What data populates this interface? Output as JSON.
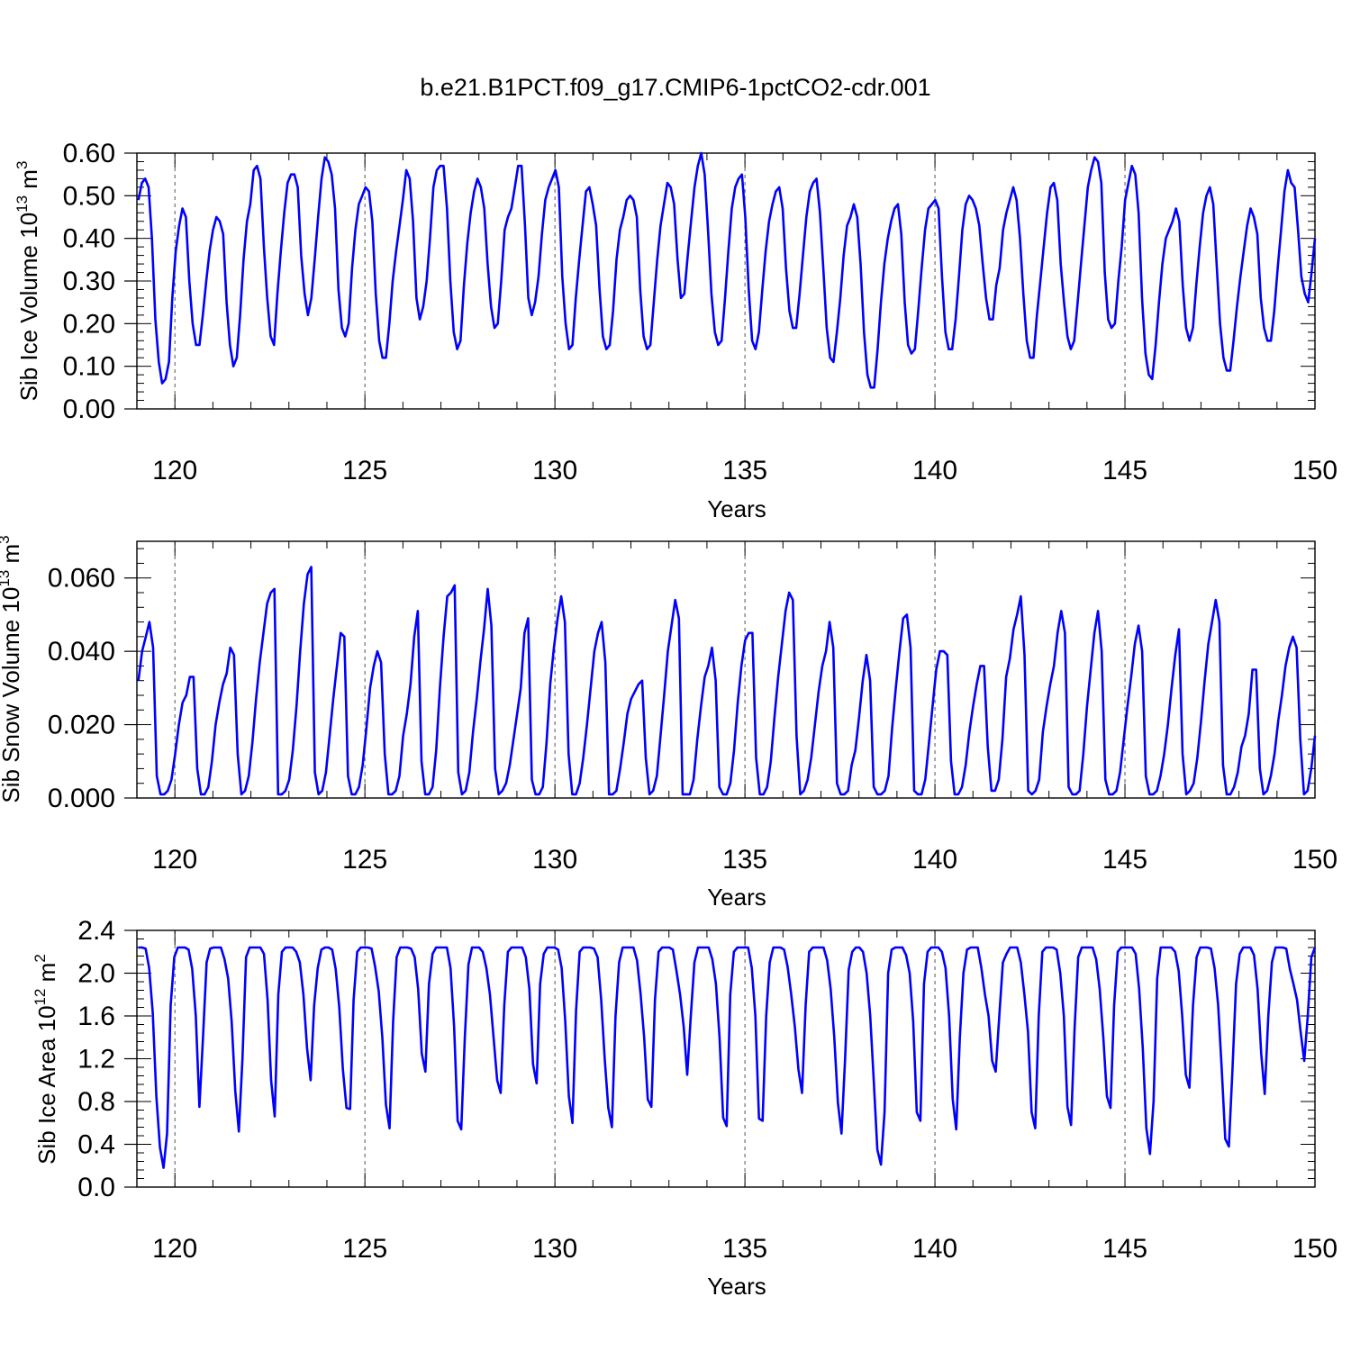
{
  "title": "b.e21.B1PCT.f09_g17.CMIP6-1pctCO2-cdr.001",
  "colors": {
    "line": "#0000ff",
    "axis": "#000000",
    "grid": "#555555"
  },
  "chart_data": [
    {
      "type": "line",
      "ylabel": "Sib Ice Volume 10",
      "ylabel_exp": "13",
      "ylabel_unit": " m",
      "ylabel_unit_exp": "3",
      "xlabel": "Years",
      "xlim": [
        119,
        150
      ],
      "ylim": [
        0,
        0.6
      ],
      "yticks": [
        0,
        0.1,
        0.2,
        0.3,
        0.4,
        0.5,
        0.6
      ],
      "ytick_labels": [
        "0.00",
        "0.10",
        "0.20",
        "0.30",
        "0.40",
        "0.50",
        "0.60"
      ],
      "xticks": [
        120,
        125,
        130,
        135,
        140,
        145,
        150
      ],
      "xtick_labels": [
        "120",
        "125",
        "130",
        "135",
        "140",
        "145",
        "150"
      ],
      "grid_x": true,
      "start_year": 119.04,
      "values": [
        0.49,
        0.53,
        0.54,
        0.52,
        0.4,
        0.21,
        0.11,
        0.06,
        0.07,
        0.11,
        0.26,
        0.37,
        0.43,
        0.47,
        0.45,
        0.3,
        0.2,
        0.15,
        0.15,
        0.22,
        0.3,
        0.37,
        0.42,
        0.45,
        0.44,
        0.41,
        0.25,
        0.15,
        0.1,
        0.12,
        0.22,
        0.35,
        0.44,
        0.48,
        0.56,
        0.57,
        0.54,
        0.38,
        0.26,
        0.17,
        0.15,
        0.27,
        0.37,
        0.46,
        0.53,
        0.55,
        0.55,
        0.52,
        0.36,
        0.27,
        0.22,
        0.26,
        0.35,
        0.45,
        0.54,
        0.59,
        0.58,
        0.55,
        0.47,
        0.28,
        0.19,
        0.17,
        0.2,
        0.33,
        0.42,
        0.48,
        0.5,
        0.52,
        0.51,
        0.44,
        0.27,
        0.16,
        0.12,
        0.12,
        0.2,
        0.3,
        0.37,
        0.43,
        0.49,
        0.56,
        0.54,
        0.44,
        0.26,
        0.21,
        0.24,
        0.3,
        0.4,
        0.52,
        0.56,
        0.57,
        0.57,
        0.47,
        0.3,
        0.18,
        0.14,
        0.16,
        0.29,
        0.39,
        0.46,
        0.51,
        0.54,
        0.52,
        0.47,
        0.34,
        0.24,
        0.19,
        0.2,
        0.3,
        0.42,
        0.45,
        0.47,
        0.52,
        0.57,
        0.57,
        0.43,
        0.26,
        0.22,
        0.25,
        0.31,
        0.41,
        0.49,
        0.52,
        0.54,
        0.56,
        0.52,
        0.31,
        0.2,
        0.14,
        0.15,
        0.26,
        0.35,
        0.43,
        0.51,
        0.52,
        0.48,
        0.43,
        0.28,
        0.17,
        0.14,
        0.15,
        0.23,
        0.35,
        0.42,
        0.45,
        0.49,
        0.5,
        0.49,
        0.45,
        0.28,
        0.17,
        0.14,
        0.15,
        0.25,
        0.35,
        0.43,
        0.48,
        0.53,
        0.52,
        0.48,
        0.35,
        0.26,
        0.27,
        0.36,
        0.44,
        0.52,
        0.57,
        0.6,
        0.55,
        0.42,
        0.27,
        0.18,
        0.15,
        0.16,
        0.26,
        0.37,
        0.47,
        0.52,
        0.54,
        0.55,
        0.45,
        0.28,
        0.16,
        0.14,
        0.18,
        0.28,
        0.37,
        0.44,
        0.48,
        0.51,
        0.52,
        0.47,
        0.33,
        0.23,
        0.19,
        0.19,
        0.27,
        0.36,
        0.45,
        0.51,
        0.53,
        0.54,
        0.46,
        0.33,
        0.19,
        0.12,
        0.11,
        0.18,
        0.26,
        0.36,
        0.43,
        0.45,
        0.48,
        0.45,
        0.34,
        0.18,
        0.08,
        0.05,
        0.05,
        0.14,
        0.25,
        0.34,
        0.4,
        0.44,
        0.47,
        0.48,
        0.41,
        0.25,
        0.15,
        0.13,
        0.14,
        0.23,
        0.33,
        0.42,
        0.47,
        0.48,
        0.49,
        0.47,
        0.31,
        0.18,
        0.14,
        0.14,
        0.21,
        0.31,
        0.42,
        0.48,
        0.5,
        0.49,
        0.47,
        0.43,
        0.34,
        0.26,
        0.21,
        0.21,
        0.29,
        0.33,
        0.42,
        0.46,
        0.49,
        0.52,
        0.49,
        0.4,
        0.27,
        0.16,
        0.12,
        0.12,
        0.22,
        0.3,
        0.38,
        0.46,
        0.52,
        0.53,
        0.49,
        0.34,
        0.25,
        0.17,
        0.14,
        0.16,
        0.25,
        0.34,
        0.43,
        0.52,
        0.56,
        0.59,
        0.58,
        0.53,
        0.32,
        0.21,
        0.19,
        0.2,
        0.3,
        0.38,
        0.49,
        0.53,
        0.57,
        0.55,
        0.46,
        0.26,
        0.13,
        0.08,
        0.07,
        0.15,
        0.25,
        0.34,
        0.4,
        0.42,
        0.44,
        0.47,
        0.44,
        0.29,
        0.19,
        0.16,
        0.19,
        0.29,
        0.38,
        0.46,
        0.5,
        0.52,
        0.48,
        0.34,
        0.2,
        0.12,
        0.09,
        0.09,
        0.16,
        0.24,
        0.31,
        0.37,
        0.43,
        0.47,
        0.45,
        0.41,
        0.26,
        0.19,
        0.16,
        0.16,
        0.23,
        0.33,
        0.42,
        0.51,
        0.56,
        0.53,
        0.52,
        0.42,
        0.31,
        0.27,
        0.25,
        0.32,
        0.4
      ]
    },
    {
      "type": "line",
      "ylabel": "Sib Snow Volume 10",
      "ylabel_exp": "13",
      "ylabel_unit": " m",
      "ylabel_unit_exp": "3",
      "xlabel": "Years",
      "xlim": [
        119,
        150
      ],
      "ylim": [
        0,
        0.07
      ],
      "yticks": [
        0,
        0.02,
        0.04,
        0.06
      ],
      "ytick_labels": [
        "0.000",
        "0.020",
        "0.040",
        "0.060"
      ],
      "xticks": [
        120,
        125,
        130,
        135,
        140,
        145,
        150
      ],
      "xtick_labels": [
        "120",
        "125",
        "130",
        "135",
        "140",
        "145",
        "150"
      ],
      "grid_x": true,
      "start_year": 119.04,
      "values": [
        0.032,
        0.04,
        0.044,
        0.048,
        0.041,
        0.006,
        0.001,
        0.001,
        0.002,
        0.005,
        0.012,
        0.02,
        0.026,
        0.028,
        0.033,
        0.033,
        0.008,
        0.001,
        0.001,
        0.003,
        0.01,
        0.02,
        0.026,
        0.031,
        0.034,
        0.041,
        0.039,
        0.012,
        0.001,
        0.002,
        0.006,
        0.015,
        0.027,
        0.037,
        0.045,
        0.053,
        0.056,
        0.057,
        0.001,
        0.001,
        0.002,
        0.005,
        0.013,
        0.025,
        0.04,
        0.053,
        0.061,
        0.063,
        0.007,
        0.001,
        0.002,
        0.007,
        0.017,
        0.027,
        0.036,
        0.045,
        0.044,
        0.006,
        0.001,
        0.001,
        0.003,
        0.009,
        0.019,
        0.03,
        0.036,
        0.04,
        0.037,
        0.012,
        0.001,
        0.001,
        0.002,
        0.006,
        0.017,
        0.023,
        0.031,
        0.044,
        0.051,
        0.01,
        0.001,
        0.001,
        0.003,
        0.013,
        0.03,
        0.044,
        0.055,
        0.056,
        0.058,
        0.007,
        0.001,
        0.002,
        0.007,
        0.018,
        0.027,
        0.037,
        0.046,
        0.057,
        0.047,
        0.008,
        0.001,
        0.002,
        0.004,
        0.009,
        0.016,
        0.023,
        0.03,
        0.045,
        0.049,
        0.005,
        0.001,
        0.001,
        0.003,
        0.015,
        0.031,
        0.041,
        0.049,
        0.055,
        0.048,
        0.012,
        0.001,
        0.001,
        0.004,
        0.011,
        0.02,
        0.03,
        0.04,
        0.045,
        0.048,
        0.037,
        0.001,
        0.001,
        0.002,
        0.008,
        0.015,
        0.023,
        0.027,
        0.029,
        0.031,
        0.032,
        0.011,
        0.001,
        0.002,
        0.006,
        0.017,
        0.028,
        0.04,
        0.047,
        0.054,
        0.049,
        0.001,
        0.001,
        0.001,
        0.005,
        0.016,
        0.025,
        0.033,
        0.036,
        0.041,
        0.032,
        0.003,
        0.001,
        0.001,
        0.004,
        0.013,
        0.026,
        0.036,
        0.043,
        0.045,
        0.045,
        0.011,
        0.001,
        0.001,
        0.003,
        0.01,
        0.022,
        0.033,
        0.042,
        0.051,
        0.056,
        0.054,
        0.017,
        0.001,
        0.002,
        0.005,
        0.011,
        0.02,
        0.029,
        0.036,
        0.04,
        0.048,
        0.041,
        0.004,
        0.001,
        0.001,
        0.002,
        0.009,
        0.013,
        0.022,
        0.032,
        0.039,
        0.032,
        0.003,
        0.001,
        0.001,
        0.002,
        0.006,
        0.019,
        0.03,
        0.04,
        0.049,
        0.05,
        0.041,
        0.002,
        0.001,
        0.001,
        0.005,
        0.015,
        0.025,
        0.035,
        0.04,
        0.04,
        0.039,
        0.01,
        0.001,
        0.001,
        0.003,
        0.009,
        0.018,
        0.025,
        0.031,
        0.036,
        0.036,
        0.014,
        0.002,
        0.002,
        0.005,
        0.016,
        0.033,
        0.038,
        0.046,
        0.05,
        0.055,
        0.039,
        0.002,
        0.001,
        0.002,
        0.005,
        0.018,
        0.025,
        0.031,
        0.036,
        0.045,
        0.051,
        0.045,
        0.003,
        0.001,
        0.001,
        0.002,
        0.012,
        0.025,
        0.035,
        0.045,
        0.051,
        0.04,
        0.005,
        0.001,
        0.001,
        0.002,
        0.007,
        0.016,
        0.025,
        0.033,
        0.042,
        0.047,
        0.04,
        0.006,
        0.001,
        0.001,
        0.002,
        0.006,
        0.012,
        0.02,
        0.03,
        0.039,
        0.046,
        0.012,
        0.001,
        0.002,
        0.004,
        0.011,
        0.021,
        0.032,
        0.042,
        0.048,
        0.054,
        0.048,
        0.009,
        0.001,
        0.001,
        0.003,
        0.007,
        0.014,
        0.017,
        0.023,
        0.035,
        0.035,
        0.008,
        0.001,
        0.002,
        0.006,
        0.012,
        0.021,
        0.028,
        0.036,
        0.041,
        0.044,
        0.041,
        0.016,
        0.001,
        0.002,
        0.008,
        0.017
      ]
    },
    {
      "type": "line",
      "ylabel": "Sib Ice Area 10",
      "ylabel_exp": "12",
      "ylabel_unit": " m",
      "ylabel_unit_exp": "2",
      "xlabel": "Years",
      "xlim": [
        119,
        150
      ],
      "ylim": [
        0,
        2.4
      ],
      "yticks": [
        0,
        0.4,
        0.8,
        1.2,
        1.6,
        2.0,
        2.4
      ],
      "ytick_labels": [
        "0.0",
        "0.4",
        "0.8",
        "1.2",
        "1.6",
        "2.0",
        "2.4"
      ],
      "xticks": [
        120,
        125,
        130,
        135,
        140,
        145,
        150
      ],
      "xtick_labels": [
        "120",
        "125",
        "130",
        "135",
        "140",
        "145",
        "150"
      ],
      "grid_x": true,
      "start_year": 119.04,
      "values": [
        2.24,
        2.24,
        2.23,
        2.05,
        1.63,
        0.85,
        0.37,
        0.18,
        0.5,
        1.7,
        2.15,
        2.24,
        2.24,
        2.24,
        2.22,
        2.04,
        1.6,
        0.75,
        1.4,
        2.1,
        2.23,
        2.24,
        2.24,
        2.24,
        2.13,
        1.95,
        1.55,
        0.9,
        0.52,
        1.2,
        2.15,
        2.24,
        2.24,
        2.24,
        2.24,
        2.18,
        1.75,
        1.0,
        0.66,
        1.8,
        2.2,
        2.24,
        2.24,
        2.24,
        2.2,
        2.1,
        1.8,
        1.3,
        1.0,
        1.7,
        2.05,
        2.22,
        2.24,
        2.24,
        2.22,
        2.04,
        1.68,
        1.1,
        0.74,
        0.73,
        1.75,
        2.2,
        2.24,
        2.24,
        2.24,
        2.23,
        2.06,
        1.83,
        1.4,
        0.77,
        0.55,
        1.55,
        2.15,
        2.24,
        2.24,
        2.24,
        2.23,
        2.15,
        1.85,
        1.25,
        1.08,
        1.9,
        2.18,
        2.24,
        2.24,
        2.24,
        2.24,
        2.05,
        1.5,
        0.62,
        0.54,
        1.4,
        2.08,
        2.24,
        2.24,
        2.24,
        2.2,
        2.05,
        1.8,
        1.4,
        1.0,
        0.88,
        1.7,
        2.2,
        2.24,
        2.24,
        2.24,
        2.24,
        2.15,
        1.85,
        1.15,
        0.97,
        1.9,
        2.18,
        2.24,
        2.24,
        2.24,
        2.22,
        2.05,
        1.55,
        0.85,
        0.6,
        1.65,
        2.2,
        2.24,
        2.24,
        2.24,
        2.23,
        2.15,
        1.75,
        1.2,
        0.74,
        0.56,
        1.6,
        2.1,
        2.24,
        2.24,
        2.24,
        2.24,
        2.12,
        1.8,
        1.4,
        0.82,
        0.75,
        1.75,
        2.2,
        2.24,
        2.24,
        2.24,
        2.22,
        2.02,
        1.8,
        1.5,
        1.05,
        1.6,
        2.1,
        2.24,
        2.24,
        2.24,
        2.24,
        2.13,
        1.9,
        1.4,
        0.65,
        0.57,
        1.8,
        2.2,
        2.24,
        2.24,
        2.24,
        2.24,
        2.05,
        1.6,
        0.64,
        0.62,
        1.6,
        2.1,
        2.24,
        2.24,
        2.24,
        2.22,
        2.06,
        1.8,
        1.5,
        1.1,
        0.88,
        1.7,
        2.2,
        2.24,
        2.24,
        2.24,
        2.24,
        2.12,
        1.85,
        1.4,
        0.79,
        0.5,
        1.2,
        2.03,
        2.2,
        2.24,
        2.24,
        2.2,
        2.0,
        1.6,
        1.0,
        0.35,
        0.21,
        0.7,
        2.0,
        2.22,
        2.24,
        2.24,
        2.24,
        2.17,
        2.0,
        1.55,
        0.7,
        0.62,
        1.9,
        2.2,
        2.24,
        2.24,
        2.24,
        2.2,
        2.05,
        1.6,
        0.82,
        0.54,
        1.4,
        2.0,
        2.22,
        2.24,
        2.24,
        2.24,
        2.05,
        1.8,
        1.6,
        1.18,
        1.08,
        1.6,
        2.1,
        2.18,
        2.24,
        2.24,
        2.24,
        2.1,
        1.8,
        1.45,
        0.7,
        0.55,
        1.6,
        2.2,
        2.24,
        2.24,
        2.24,
        2.22,
        2.0,
        1.6,
        0.75,
        0.58,
        1.5,
        2.15,
        2.24,
        2.24,
        2.24,
        2.24,
        2.13,
        1.85,
        1.4,
        0.85,
        0.74,
        1.7,
        2.2,
        2.24,
        2.24,
        2.24,
        2.24,
        2.18,
        1.85,
        1.3,
        0.55,
        0.31,
        0.8,
        1.95,
        2.24,
        2.24,
        2.24,
        2.24,
        2.2,
        2.02,
        1.6,
        1.05,
        0.93,
        1.7,
        2.15,
        2.24,
        2.24,
        2.24,
        2.23,
        2.05,
        1.7,
        1.1,
        0.45,
        0.38,
        1.1,
        1.9,
        2.18,
        2.24,
        2.24,
        2.24,
        2.17,
        1.85,
        1.25,
        0.87,
        1.6,
        2.1,
        2.24,
        2.24,
        2.24,
        2.23,
        2.04,
        1.9,
        1.75,
        1.45,
        1.18,
        1.6,
        2.15,
        2.24
      ]
    }
  ]
}
